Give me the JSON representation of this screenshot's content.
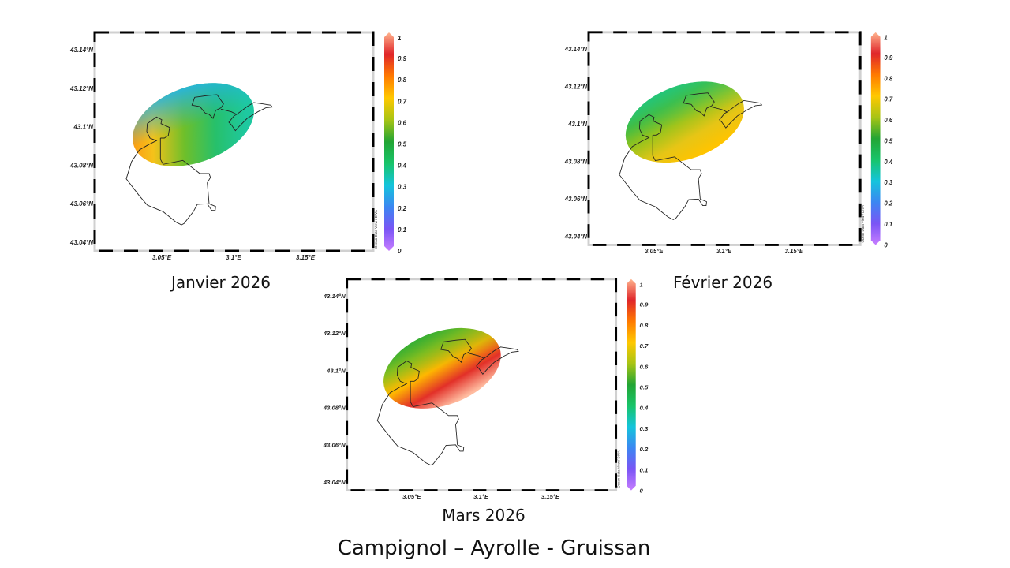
{
  "slide": {
    "title": "Campignol – Ayrolle - Gruissan"
  },
  "axes": {
    "y_labels": [
      "43.14°N",
      "43.12°N",
      "43.1°N",
      "43.08°N",
      "43.06°N",
      "43.04°N"
    ],
    "x_labels": [
      "3.05°E",
      "3.1°E",
      "3.15°E"
    ],
    "colorbar_ticks": [
      "0",
      "0.1",
      "0.2",
      "0.3",
      "0.4",
      "0.5",
      "0.6",
      "0.7",
      "0.8",
      "0.9",
      "1"
    ],
    "watermark": "Ocean Data View / DIVA"
  },
  "colorbar_colors": [
    "#c77dff",
    "#7a55f5",
    "#3c86f2",
    "#14c4dc",
    "#18c46a",
    "#23a534",
    "#a8c414",
    "#ffc800",
    "#ff7a00",
    "#e0262a",
    "#ffb48e"
  ],
  "maps": [
    {
      "label": "Janvier 2026",
      "fill": [
        "#ff8a10",
        "#f5c21a",
        "#6fbf2a",
        "#27c06a",
        "#1ec8a0"
      ],
      "top_tint": "#22b4e8"
    },
    {
      "label": "Février 2026",
      "fill": [
        "#1ec57a",
        "#48bb36",
        "#9cc41c",
        "#e6c516",
        "#ffc400"
      ],
      "top_tint": "#1ec88a"
    },
    {
      "label": "Mars 2026",
      "fill": [
        "#24b034",
        "#9cc418",
        "#ffb800",
        "#e23028",
        "#ffbca0"
      ],
      "top_tint": "#2aa838"
    }
  ]
}
